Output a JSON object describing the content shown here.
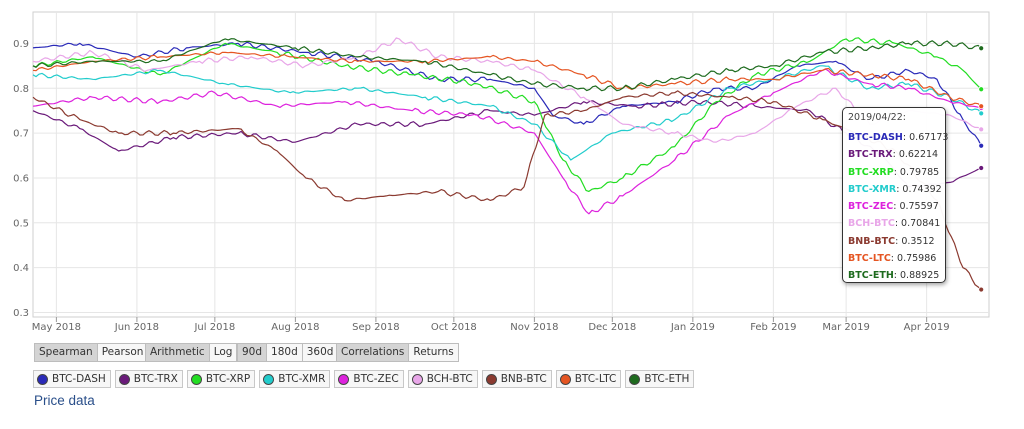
{
  "chart_data": {
    "type": "line",
    "ylim": [
      0.29,
      0.97
    ],
    "y_ticks": [
      0.3,
      0.4,
      0.5,
      0.6,
      0.7,
      0.8,
      0.9
    ],
    "x_range": [
      "2018-04-22",
      "2019-04-25"
    ],
    "x_ticks": [
      {
        "date": "2018-05-01",
        "label": "May 2018"
      },
      {
        "date": "2018-06-01",
        "label": "Jun 2018"
      },
      {
        "date": "2018-07-01",
        "label": "Jul 2018"
      },
      {
        "date": "2018-08-01",
        "label": "Aug 2018"
      },
      {
        "date": "2018-09-01",
        "label": "Sep 2018"
      },
      {
        "date": "2018-10-01",
        "label": "Oct 2018"
      },
      {
        "date": "2018-11-01",
        "label": "Nov 2018"
      },
      {
        "date": "2018-12-01",
        "label": "Dec 2018"
      },
      {
        "date": "2019-01-01",
        "label": "Jan 2019"
      },
      {
        "date": "2019-02-01",
        "label": "Feb 2019"
      },
      {
        "date": "2019-03-01",
        "label": "Mar 2019"
      },
      {
        "date": "2019-04-01",
        "label": "Apr 2019"
      }
    ],
    "grid": true,
    "series": [
      {
        "name": "BTC-DASH",
        "color": "#2a2ab8",
        "points": [
          [
            "2018-04-22",
            0.89
          ],
          [
            "2018-05-10",
            0.9
          ],
          [
            "2018-06-01",
            0.87
          ],
          [
            "2018-06-20",
            0.89
          ],
          [
            "2018-07-10",
            0.9
          ],
          [
            "2018-08-05",
            0.88
          ],
          [
            "2018-09-01",
            0.86
          ],
          [
            "2018-09-25",
            0.82
          ],
          [
            "2018-10-15",
            0.82
          ],
          [
            "2018-11-01",
            0.8
          ],
          [
            "2018-11-08",
            0.74
          ],
          [
            "2018-11-20",
            0.72
          ],
          [
            "2018-12-05",
            0.76
          ],
          [
            "2018-12-25",
            0.77
          ],
          [
            "2019-01-10",
            0.8
          ],
          [
            "2019-01-25",
            0.8
          ],
          [
            "2019-02-10",
            0.85
          ],
          [
            "2019-02-25",
            0.86
          ],
          [
            "2019-03-10",
            0.82
          ],
          [
            "2019-03-25",
            0.84
          ],
          [
            "2019-04-05",
            0.82
          ],
          [
            "2019-04-15",
            0.73
          ],
          [
            "2019-04-22",
            0.67173
          ]
        ]
      },
      {
        "name": "BTC-TRX",
        "color": "#6a1a7a",
        "points": [
          [
            "2018-04-22",
            0.75
          ],
          [
            "2018-05-10",
            0.71
          ],
          [
            "2018-05-25",
            0.66
          ],
          [
            "2018-06-15",
            0.69
          ],
          [
            "2018-07-10",
            0.7
          ],
          [
            "2018-08-01",
            0.68
          ],
          [
            "2018-08-25",
            0.72
          ],
          [
            "2018-09-20",
            0.72
          ],
          [
            "2018-10-15",
            0.75
          ],
          [
            "2018-11-01",
            0.74
          ],
          [
            "2018-11-20",
            0.77
          ],
          [
            "2018-12-10",
            0.76
          ],
          [
            "2019-01-05",
            0.77
          ],
          [
            "2019-01-25",
            0.76
          ],
          [
            "2019-02-15",
            0.75
          ],
          [
            "2019-03-01",
            0.7
          ],
          [
            "2019-03-15",
            0.65
          ],
          [
            "2019-03-25",
            0.58
          ],
          [
            "2019-04-10",
            0.59
          ],
          [
            "2019-04-22",
            0.62214
          ]
        ]
      },
      {
        "name": "BTC-XRP",
        "color": "#22dd22",
        "points": [
          [
            "2018-04-22",
            0.85
          ],
          [
            "2018-05-15",
            0.87
          ],
          [
            "2018-06-10",
            0.83
          ],
          [
            "2018-07-05",
            0.9
          ],
          [
            "2018-07-25",
            0.88
          ],
          [
            "2018-08-20",
            0.85
          ],
          [
            "2018-09-15",
            0.83
          ],
          [
            "2018-10-10",
            0.81
          ],
          [
            "2018-11-01",
            0.77
          ],
          [
            "2018-11-12",
            0.64
          ],
          [
            "2018-11-22",
            0.57
          ],
          [
            "2018-12-05",
            0.6
          ],
          [
            "2018-12-25",
            0.67
          ],
          [
            "2019-01-10",
            0.77
          ],
          [
            "2019-01-25",
            0.83
          ],
          [
            "2019-02-15",
            0.86
          ],
          [
            "2019-03-01",
            0.91
          ],
          [
            "2019-03-20",
            0.9
          ],
          [
            "2019-04-05",
            0.87
          ],
          [
            "2019-04-15",
            0.84
          ],
          [
            "2019-04-22",
            0.79785
          ]
        ]
      },
      {
        "name": "BTC-XMR",
        "color": "#22cccc",
        "points": [
          [
            "2018-04-22",
            0.83
          ],
          [
            "2018-05-15",
            0.82
          ],
          [
            "2018-06-10",
            0.84
          ],
          [
            "2018-07-05",
            0.81
          ],
          [
            "2018-07-30",
            0.79
          ],
          [
            "2018-08-25",
            0.8
          ],
          [
            "2018-09-20",
            0.78
          ],
          [
            "2018-10-15",
            0.76
          ],
          [
            "2018-11-01",
            0.72
          ],
          [
            "2018-11-15",
            0.64
          ],
          [
            "2018-12-01",
            0.7
          ],
          [
            "2018-12-25",
            0.73
          ],
          [
            "2019-01-15",
            0.8
          ],
          [
            "2019-02-01",
            0.82
          ],
          [
            "2019-02-20",
            0.85
          ],
          [
            "2019-03-10",
            0.8
          ],
          [
            "2019-03-25",
            0.81
          ],
          [
            "2019-04-10",
            0.78
          ],
          [
            "2019-04-22",
            0.74392
          ]
        ]
      },
      {
        "name": "BTC-ZEC",
        "color": "#dd22dd",
        "points": [
          [
            "2018-04-22",
            0.76
          ],
          [
            "2018-05-15",
            0.78
          ],
          [
            "2018-06-10",
            0.77
          ],
          [
            "2018-07-01",
            0.79
          ],
          [
            "2018-07-25",
            0.76
          ],
          [
            "2018-08-20",
            0.77
          ],
          [
            "2018-09-15",
            0.75
          ],
          [
            "2018-10-10",
            0.74
          ],
          [
            "2018-11-01",
            0.7
          ],
          [
            "2018-11-12",
            0.6
          ],
          [
            "2018-11-22",
            0.52
          ],
          [
            "2018-12-05",
            0.56
          ],
          [
            "2018-12-25",
            0.64
          ],
          [
            "2019-01-15",
            0.74
          ],
          [
            "2019-02-01",
            0.79
          ],
          [
            "2019-02-20",
            0.84
          ],
          [
            "2019-03-10",
            0.81
          ],
          [
            "2019-03-25",
            0.8
          ],
          [
            "2019-04-10",
            0.77
          ],
          [
            "2019-04-22",
            0.75597
          ]
        ]
      },
      {
        "name": "BCH-BTC",
        "color": "#e8a6e8",
        "points": [
          [
            "2018-04-22",
            0.86
          ],
          [
            "2018-05-15",
            0.88
          ],
          [
            "2018-06-05",
            0.84
          ],
          [
            "2018-06-25",
            0.86
          ],
          [
            "2018-07-15",
            0.87
          ],
          [
            "2018-08-05",
            0.85
          ],
          [
            "2018-08-25",
            0.87
          ],
          [
            "2018-09-10",
            0.91
          ],
          [
            "2018-09-25",
            0.87
          ],
          [
            "2018-10-15",
            0.86
          ],
          [
            "2018-11-01",
            0.84
          ],
          [
            "2018-11-20",
            0.78
          ],
          [
            "2018-12-05",
            0.72
          ],
          [
            "2018-12-25",
            0.7
          ],
          [
            "2019-01-10",
            0.68
          ],
          [
            "2019-01-25",
            0.7
          ],
          [
            "2019-02-10",
            0.76
          ],
          [
            "2019-02-25",
            0.8
          ],
          [
            "2019-03-10",
            0.72
          ],
          [
            "2019-03-25",
            0.75
          ],
          [
            "2019-04-10",
            0.74
          ],
          [
            "2019-04-22",
            0.70841
          ]
        ]
      },
      {
        "name": "BNB-BTC",
        "color": "#8b3a30",
        "points": [
          [
            "2018-04-22",
            0.78
          ],
          [
            "2018-05-10",
            0.73
          ],
          [
            "2018-05-25",
            0.7
          ],
          [
            "2018-06-15",
            0.7
          ],
          [
            "2018-07-10",
            0.71
          ],
          [
            "2018-07-25",
            0.66
          ],
          [
            "2018-08-05",
            0.6
          ],
          [
            "2018-08-20",
            0.55
          ],
          [
            "2018-09-05",
            0.56
          ],
          [
            "2018-09-25",
            0.57
          ],
          [
            "2018-10-15",
            0.55
          ],
          [
            "2018-10-28",
            0.58
          ],
          [
            "2018-11-05",
            0.74
          ],
          [
            "2018-11-20",
            0.75
          ],
          [
            "2018-12-05",
            0.78
          ],
          [
            "2018-12-25",
            0.79
          ],
          [
            "2019-01-15",
            0.78
          ],
          [
            "2019-02-01",
            0.77
          ],
          [
            "2019-02-20",
            0.73
          ],
          [
            "2019-03-05",
            0.7
          ],
          [
            "2019-03-20",
            0.66
          ],
          [
            "2019-04-05",
            0.55
          ],
          [
            "2019-04-15",
            0.4
          ],
          [
            "2019-04-22",
            0.3512
          ]
        ]
      },
      {
        "name": "BTC-LTC",
        "color": "#e55522",
        "points": [
          [
            "2018-04-22",
            0.84
          ],
          [
            "2018-05-15",
            0.86
          ],
          [
            "2018-06-10",
            0.87
          ],
          [
            "2018-07-05",
            0.88
          ],
          [
            "2018-07-30",
            0.87
          ],
          [
            "2018-08-25",
            0.86
          ],
          [
            "2018-09-20",
            0.86
          ],
          [
            "2018-10-15",
            0.87
          ],
          [
            "2018-11-01",
            0.86
          ],
          [
            "2018-11-20",
            0.83
          ],
          [
            "2018-12-05",
            0.8
          ],
          [
            "2018-12-25",
            0.81
          ],
          [
            "2019-01-15",
            0.82
          ],
          [
            "2019-02-01",
            0.82
          ],
          [
            "2019-02-20",
            0.84
          ],
          [
            "2019-03-10",
            0.83
          ],
          [
            "2019-03-25",
            0.82
          ],
          [
            "2019-04-10",
            0.78
          ],
          [
            "2019-04-22",
            0.75986
          ]
        ]
      },
      {
        "name": "BTC-ETH",
        "color": "#1e6b1e",
        "points": [
          [
            "2018-04-22",
            0.85
          ],
          [
            "2018-05-15",
            0.86
          ],
          [
            "2018-06-10",
            0.86
          ],
          [
            "2018-07-05",
            0.91
          ],
          [
            "2018-08-01",
            0.89
          ],
          [
            "2018-08-25",
            0.87
          ],
          [
            "2018-09-20",
            0.86
          ],
          [
            "2018-10-15",
            0.83
          ],
          [
            "2018-11-01",
            0.81
          ],
          [
            "2018-11-20",
            0.8
          ],
          [
            "2018-12-05",
            0.8
          ],
          [
            "2018-12-25",
            0.82
          ],
          [
            "2019-01-15",
            0.84
          ],
          [
            "2019-02-01",
            0.85
          ],
          [
            "2019-02-20",
            0.88
          ],
          [
            "2019-03-10",
            0.89
          ],
          [
            "2019-03-25",
            0.9
          ],
          [
            "2019-04-10",
            0.9
          ],
          [
            "2019-04-22",
            0.88925
          ]
        ]
      }
    ]
  },
  "tooltip": {
    "date": "2019/04/22:",
    "rows": [
      {
        "name": "BTC-DASH",
        "value": "0.67173"
      },
      {
        "name": "BTC-TRX",
        "value": "0.62214"
      },
      {
        "name": "BTC-XRP",
        "value": "0.79785"
      },
      {
        "name": "BTC-XMR",
        "value": "0.74392"
      },
      {
        "name": "BTC-ZEC",
        "value": "0.75597"
      },
      {
        "name": "BCH-BTC",
        "value": "0.70841"
      },
      {
        "name": "BNB-BTC",
        "value": "0.3512"
      },
      {
        "name": "BTC-LTC",
        "value": "0.75986"
      },
      {
        "name": "BTC-ETH",
        "value": "0.88925"
      }
    ]
  },
  "controls": {
    "method": {
      "options": [
        "Spearman",
        "Pearson"
      ],
      "selected": "Spearman"
    },
    "scale": {
      "options": [
        "Arithmetic",
        "Log"
      ],
      "selected": "Arithmetic"
    },
    "window": {
      "options": [
        "90d",
        "180d",
        "360d"
      ],
      "selected": "90d"
    },
    "view": {
      "options": [
        "Correlations",
        "Returns"
      ],
      "selected": "Correlations"
    }
  },
  "price_data_label": "Price data"
}
